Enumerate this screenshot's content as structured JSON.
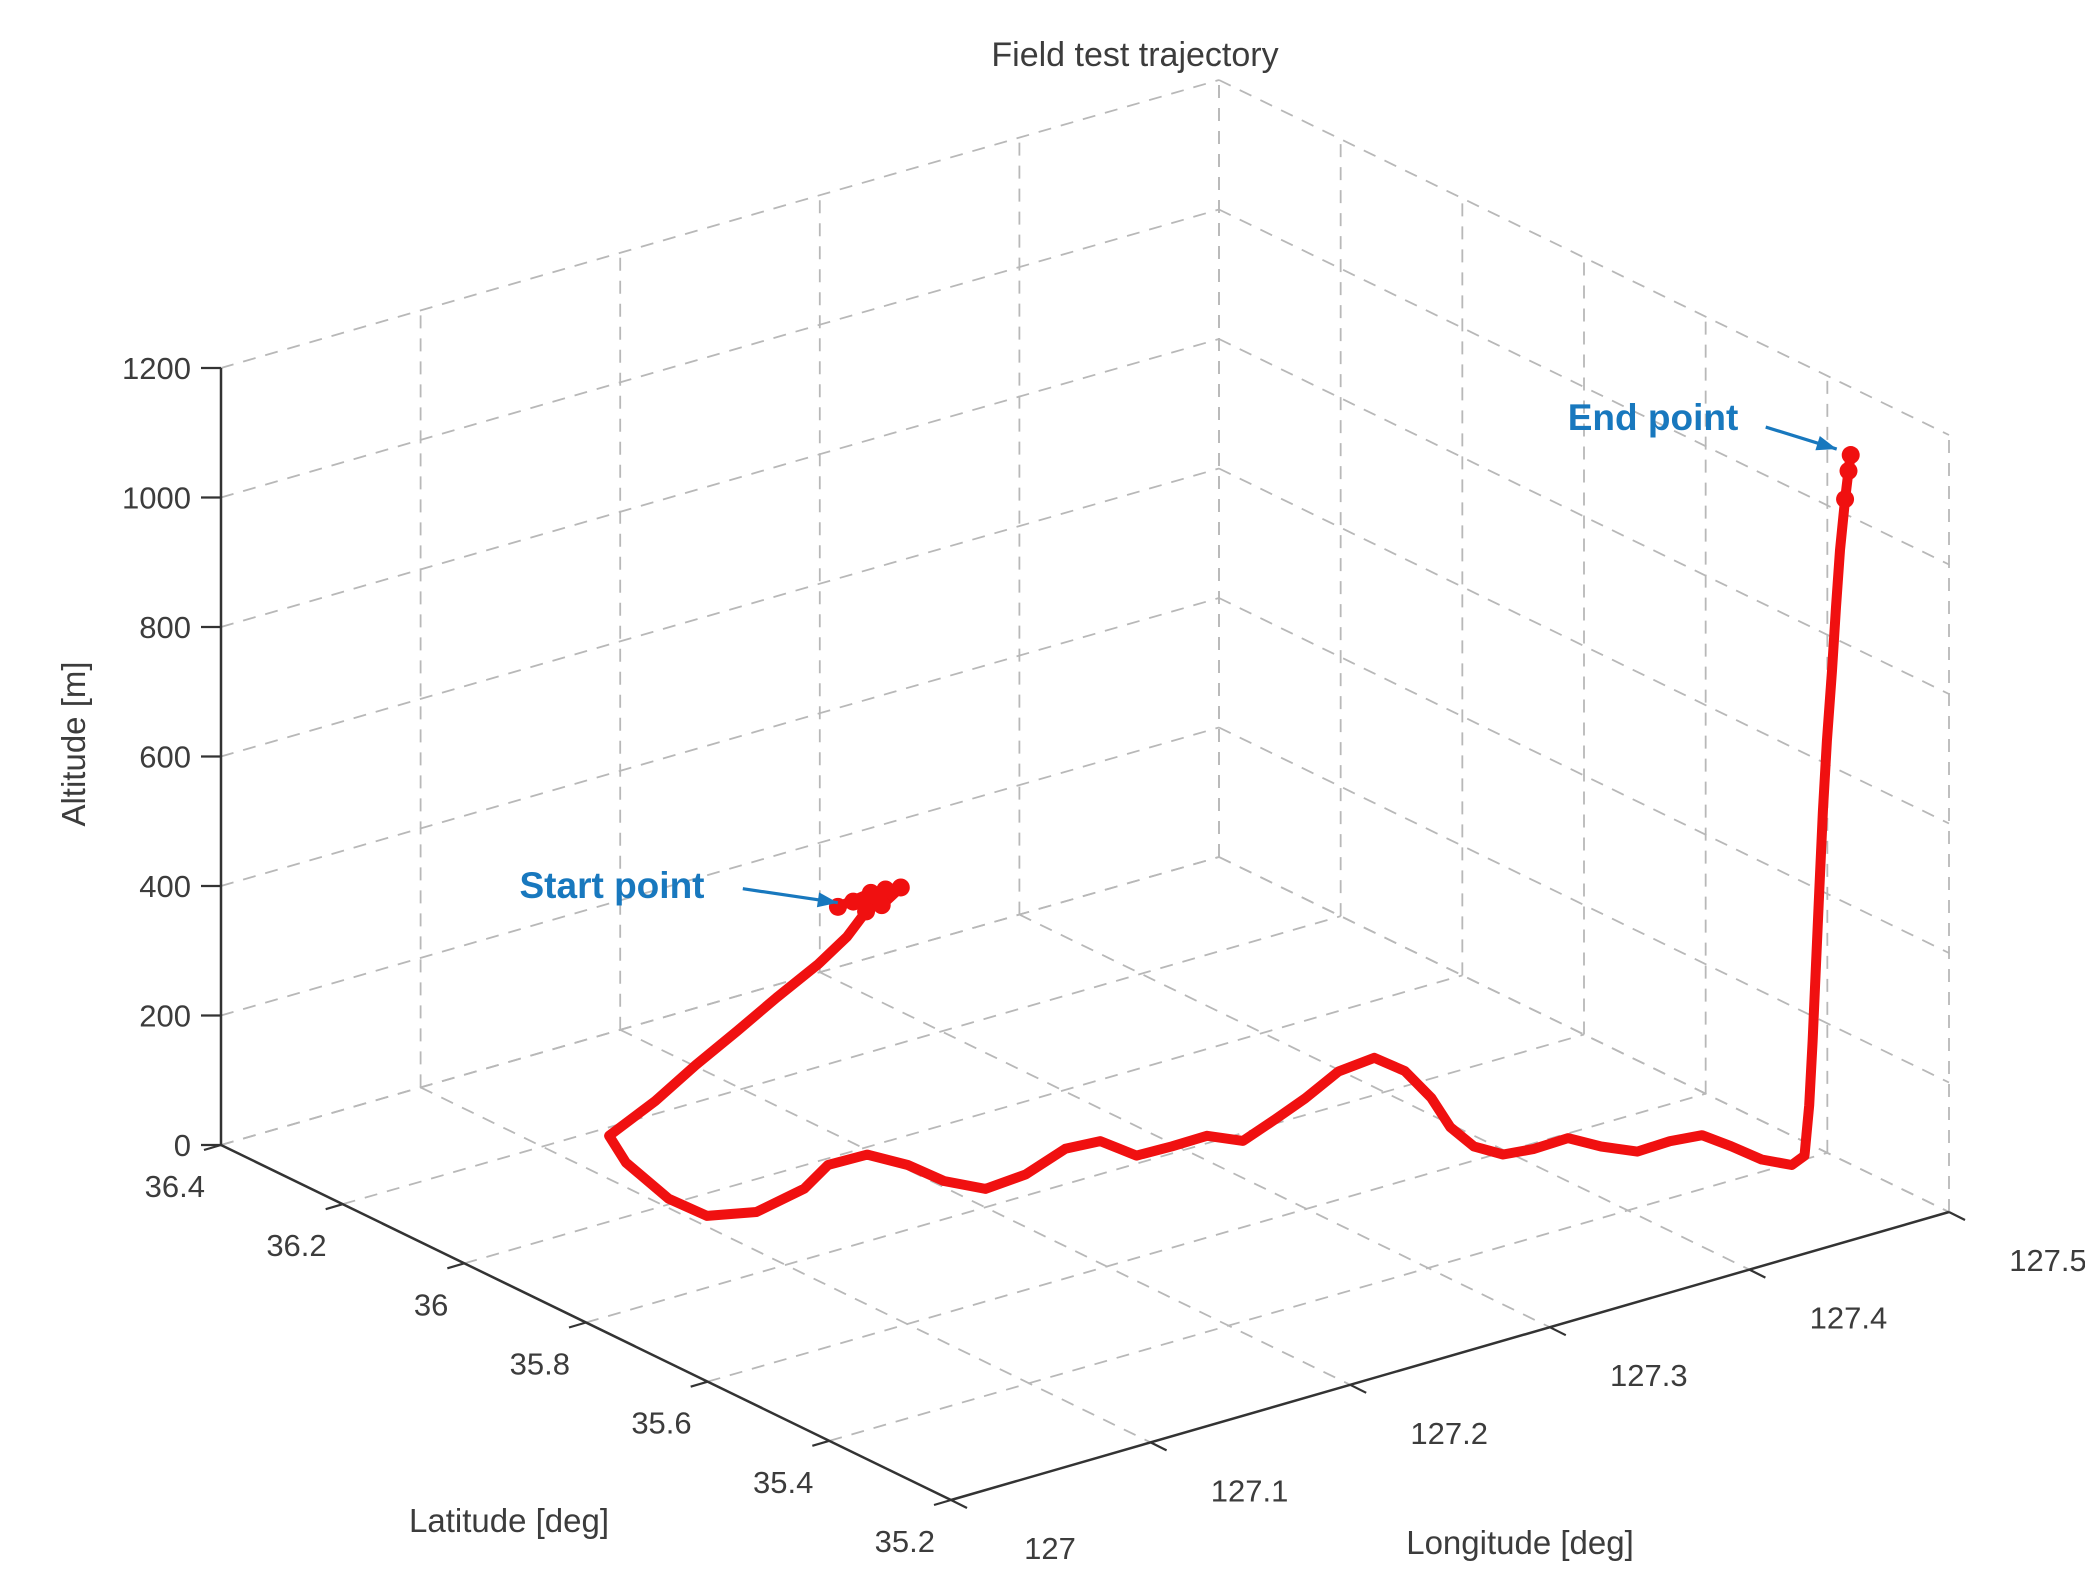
{
  "title": "Field test trajectory",
  "chart_data": {
    "type": "line",
    "projection": "3d",
    "title": "Field test trajectory",
    "xlabel": "Longitude [deg]",
    "ylabel": "Latitude [deg]",
    "zlabel": "Altitude [m]",
    "xlim": [
      127,
      127.5
    ],
    "ylim": [
      35.2,
      36.4
    ],
    "zlim": [
      0,
      1200
    ],
    "xticks": [
      127,
      127.1,
      127.2,
      127.3,
      127.4,
      127.5
    ],
    "xtick_labels": [
      "127",
      "127.1",
      "127.2",
      "127.3",
      "127.4",
      "127.5"
    ],
    "yticks": [
      36.4,
      36.2,
      36,
      35.8,
      35.6,
      35.4,
      35.2
    ],
    "ytick_labels": [
      "36.4",
      "36.2",
      "36",
      "35.8",
      "35.6",
      "35.4",
      "35.2"
    ],
    "zticks": [
      0,
      200,
      400,
      600,
      800,
      1000,
      1200
    ],
    "ztick_labels": [
      "0",
      "200",
      "400",
      "600",
      "800",
      "1000",
      "1200"
    ],
    "grid": true,
    "colors": {
      "trajectory": "#f01010",
      "grid": "#b8b8b8",
      "axis": "#333333",
      "text": "#3c3c3c",
      "annotation": "#1878be"
    },
    "annotations": [
      {
        "text": "Start point",
        "at": [
          127.227,
          36.075,
          330
        ]
      },
      {
        "text": "End point",
        "at": [
          127.498,
          35.355,
          1100
        ]
      }
    ],
    "series": [
      {
        "name": "trajectory",
        "points": [
          [
            127.214,
            36.088,
            320
          ],
          [
            127.225,
            36.07,
            340
          ],
          [
            127.236,
            36.082,
            330
          ],
          [
            127.24,
            36.07,
            335
          ],
          [
            127.228,
            36.062,
            322
          ],
          [
            127.218,
            36.076,
            330
          ],
          [
            127.23,
            36.08,
            326
          ],
          [
            127.222,
            36.068,
            315
          ],
          [
            127.21,
            36.06,
            290
          ],
          [
            127.196,
            36.061,
            260
          ],
          [
            127.182,
            36.084,
            210
          ],
          [
            127.169,
            36.106,
            160
          ],
          [
            127.155,
            36.128,
            110
          ],
          [
            127.142,
            36.152,
            55
          ],
          [
            127.128,
            36.182,
            0
          ],
          [
            127.116,
            36.115,
            0
          ],
          [
            127.106,
            36.012,
            0
          ],
          [
            127.107,
            35.952,
            0
          ],
          [
            127.125,
            35.93,
            0
          ],
          [
            127.155,
            35.95,
            0
          ],
          [
            127.178,
            35.986,
            0
          ],
          [
            127.197,
            35.984,
            0
          ],
          [
            127.203,
            35.937,
            0
          ],
          [
            127.204,
            35.881,
            0
          ],
          [
            127.212,
            35.839,
            0
          ],
          [
            127.234,
            35.845,
            0
          ],
          [
            127.263,
            35.875,
            0
          ],
          [
            127.279,
            35.87,
            0
          ],
          [
            127.281,
            35.817,
            0
          ],
          [
            127.298,
            35.815,
            0
          ],
          [
            127.316,
            35.816,
            0
          ],
          [
            127.324,
            35.783,
            0
          ],
          [
            127.348,
            35.809,
            0
          ],
          [
            127.371,
            35.835,
            0
          ],
          [
            127.399,
            35.872,
            0
          ],
          [
            127.419,
            35.879,
            0
          ],
          [
            127.42,
            35.832,
            0
          ],
          [
            127.411,
            35.759,
            0
          ],
          [
            127.398,
            35.685,
            0
          ],
          [
            127.393,
            35.63,
            0
          ],
          [
            127.397,
            35.595,
            0
          ],
          [
            127.41,
            35.588,
            0
          ],
          [
            127.428,
            35.59,
            0
          ],
          [
            127.433,
            35.552,
            0
          ],
          [
            127.441,
            35.519,
            0
          ],
          [
            127.458,
            35.521,
            0
          ],
          [
            127.472,
            35.514,
            0
          ],
          [
            127.474,
            35.473,
            0
          ],
          [
            127.475,
            35.426,
            0
          ],
          [
            127.481,
            35.396,
            0
          ],
          [
            127.491,
            35.408,
            0
          ],
          [
            127.4915,
            35.402,
            80
          ],
          [
            127.492,
            35.398,
            180
          ],
          [
            127.4925,
            35.394,
            300
          ],
          [
            127.493,
            35.39,
            420
          ],
          [
            127.4935,
            35.386,
            540
          ],
          [
            127.494,
            35.381,
            650
          ],
          [
            127.495,
            35.376,
            760
          ],
          [
            127.4955,
            35.371,
            860
          ],
          [
            127.496,
            35.366,
            950
          ],
          [
            127.497,
            35.361,
            1030
          ],
          [
            127.4975,
            35.357,
            1075
          ],
          [
            127.498,
            35.355,
            1100
          ]
        ]
      }
    ]
  }
}
